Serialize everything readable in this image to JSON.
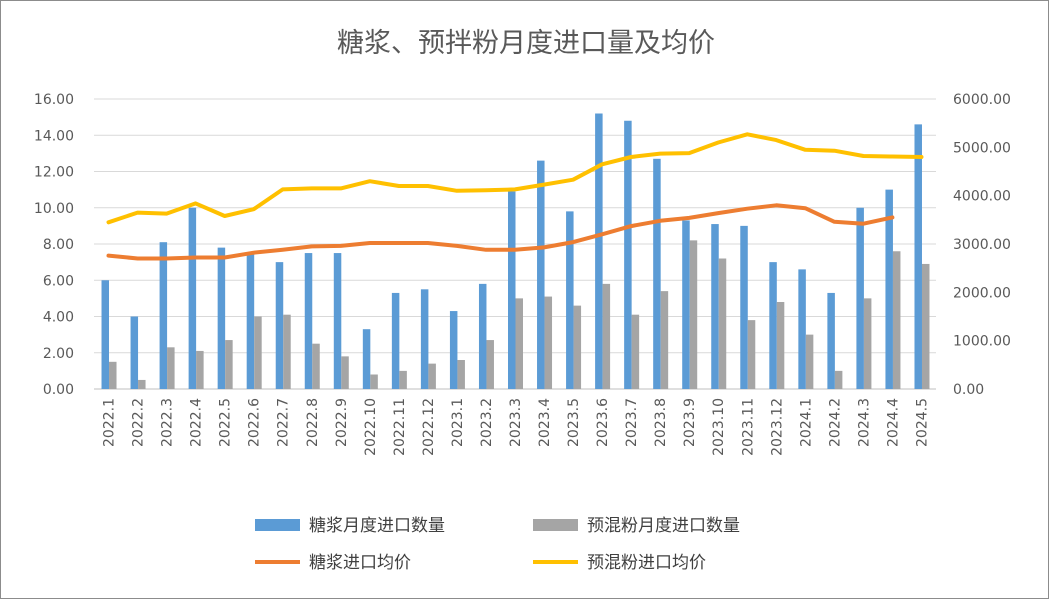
{
  "chart_data": {
    "type": "bar",
    "title": "糖浆、预拌粉月度进口量及均价",
    "categories": [
      "2022.1",
      "2022.2",
      "2022.3",
      "2022.4",
      "2022.5",
      "2022.6",
      "2022.7",
      "2022.8",
      "2022.9",
      "2022.10",
      "2022.11",
      "2022.12",
      "2023.1",
      "2023.2",
      "2023.3",
      "2023.4",
      "2023.5",
      "2023.6",
      "2023.7",
      "2023.8",
      "2023.9",
      "2023.10",
      "2023.11",
      "2023.12",
      "2024.1",
      "2024.2",
      "2024.3",
      "2024.4",
      "2024.5"
    ],
    "y_left": {
      "ylim": [
        0,
        16
      ],
      "ticks": [
        "0.00",
        "2.00",
        "4.00",
        "6.00",
        "8.00",
        "10.00",
        "12.00",
        "14.00",
        "16.00"
      ]
    },
    "y_right": {
      "ylim": [
        0,
        6000
      ],
      "ticks": [
        "0.00",
        "1000.00",
        "2000.00",
        "3000.00",
        "4000.00",
        "5000.00",
        "6000.00"
      ]
    },
    "series": [
      {
        "name": "糖浆月度进口数量",
        "type": "bar",
        "axis": "left",
        "color": "#5b9bd5",
        "values": [
          6.0,
          4.0,
          8.1,
          10.0,
          7.8,
          7.5,
          7.0,
          7.5,
          7.5,
          3.3,
          5.3,
          5.5,
          4.3,
          5.8,
          10.9,
          12.6,
          9.8,
          15.2,
          14.8,
          12.7,
          9.3,
          9.1,
          9.0,
          7.0,
          6.6,
          5.3,
          10.0,
          11.0,
          14.6
        ]
      },
      {
        "name": "预混粉月度进口数量",
        "type": "bar",
        "axis": "left",
        "color": "#a5a5a5",
        "values": [
          1.5,
          0.5,
          2.3,
          2.1,
          2.7,
          4.0,
          4.1,
          2.5,
          1.8,
          0.8,
          1.0,
          1.4,
          1.6,
          2.7,
          5.0,
          5.1,
          4.6,
          5.8,
          4.1,
          5.4,
          8.2,
          7.2,
          3.8,
          4.8,
          3.0,
          1.0,
          5.0,
          7.6,
          6.9
        ]
      },
      {
        "name": "糖浆进口均价",
        "type": "line",
        "axis": "right",
        "color": "#ed7d31",
        "values": [
          2760,
          2700,
          2700,
          2720,
          2720,
          2820,
          2880,
          2950,
          2960,
          3020,
          3020,
          3020,
          2960,
          2880,
          2880,
          2930,
          3040,
          3200,
          3370,
          3480,
          3540,
          3640,
          3730,
          3800,
          3740,
          3460,
          3420,
          3550,
          null
        ]
      },
      {
        "name": "预混粉进口均价",
        "type": "line",
        "axis": "right",
        "color": "#ffc000",
        "values": [
          3450,
          3650,
          3630,
          3840,
          3580,
          3720,
          4130,
          4150,
          4150,
          4300,
          4200,
          4200,
          4100,
          4110,
          4130,
          4230,
          4330,
          4650,
          4800,
          4870,
          4880,
          5100,
          5270,
          5150,
          4950,
          4930,
          4820,
          4810,
          4800
        ]
      }
    ],
    "grid": true,
    "legend_position": "bottom"
  }
}
